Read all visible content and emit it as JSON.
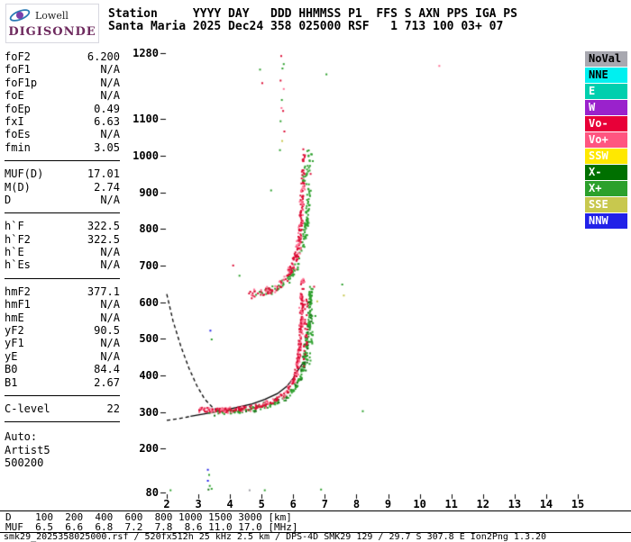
{
  "app": {
    "logo_top": "Lowell",
    "logo_bottom": "DIGISONDE"
  },
  "header": {
    "line1": "Station     YYYY DAY   DDD HHMMSS P1  FFS S AXN PPS IGA PS",
    "line2": "Santa Maria 2025 Dec24 358 025000 RSF   1 713 100 03+ 07"
  },
  "panel": {
    "groups": [
      {
        "rows": [
          [
            "foF2",
            "6.200"
          ],
          [
            "foF1",
            "N/A"
          ],
          [
            "foF1p",
            "N/A"
          ],
          [
            "foE",
            "N/A"
          ],
          [
            "foEp",
            "0.49"
          ],
          [
            "fxI",
            "6.63"
          ],
          [
            "foEs",
            "N/A"
          ],
          [
            "fmin",
            "3.05"
          ]
        ]
      },
      {
        "rows": [
          [
            "MUF(D)",
            "17.01"
          ],
          [
            "M(D)",
            "2.74"
          ],
          [
            "D",
            "N/A"
          ]
        ]
      },
      {
        "rows": [
          [
            "h`F",
            "322.5"
          ],
          [
            "h`F2",
            "322.5"
          ],
          [
            "h`E",
            "N/A"
          ],
          [
            "h`Es",
            "N/A"
          ]
        ]
      },
      {
        "rows": [
          [
            "hmF2",
            "377.1"
          ],
          [
            "hmF1",
            "N/A"
          ],
          [
            "hmE",
            "N/A"
          ],
          [
            "yF2",
            "90.5"
          ],
          [
            "yF1",
            "N/A"
          ],
          [
            "yE",
            "N/A"
          ],
          [
            "B0",
            "84.4"
          ],
          [
            "B1",
            "2.67"
          ]
        ]
      },
      {
        "rows": [
          [
            "C-level",
            "22"
          ]
        ]
      },
      {
        "gap": true,
        "rows": [
          [
            "Auto:",
            ""
          ],
          [
            "Artist5",
            ""
          ],
          [
            "500200",
            ""
          ]
        ]
      }
    ]
  },
  "muf_table": {
    "d_label": "D",
    "muf_label": "MUF",
    "distances": [
      "100",
      "200",
      "400",
      "600",
      "800",
      "1000",
      "1500",
      "3000"
    ],
    "mufs": [
      "6.5",
      "6.6",
      "6.8",
      "7.2",
      "7.8",
      "8.6",
      "11.0",
      "17.0"
    ],
    "d_unit": "[km]",
    "muf_unit": "[MHz]"
  },
  "footer": {
    "status": "smk29_2025358025000.rsf / 520fx512h 25 kHz 2.5 km / DPS-4D SMK29 129 / 29.7 S 307.8 E Ion2Png 1.3.20"
  },
  "chart_data": {
    "type": "scatter",
    "xlim": [
      2,
      15
    ],
    "ylim": [
      80,
      1280
    ],
    "x_ticks": [
      2,
      3,
      4,
      5,
      6,
      7,
      8,
      9,
      10,
      11,
      12,
      13,
      14,
      15
    ],
    "y_ticks": [
      1280,
      1100,
      1000,
      900,
      800,
      700,
      600,
      500,
      400,
      300,
      200,
      80
    ],
    "grid": false,
    "legend_position": "top-right",
    "legend": [
      {
        "label": "NoVal",
        "color": "#a8a8b0",
        "text": "#000000"
      },
      {
        "label": "NNE",
        "color": "#00f0f0",
        "text": "#000000"
      },
      {
        "label": "E",
        "color": "#00cfae",
        "text": "#ffffff"
      },
      {
        "label": "W",
        "color": "#9a22cc",
        "text": "#ffffff"
      },
      {
        "label": "Vo-",
        "color": "#e80038",
        "text": "#ffffff"
      },
      {
        "label": "Vo+",
        "color": "#ff5580",
        "text": "#ffffff"
      },
      {
        "label": "SSW",
        "color": "#ffe800",
        "text": "#ffffff"
      },
      {
        "label": "X-",
        "color": "#007000",
        "text": "#ffffff"
      },
      {
        "label": "X+",
        "color": "#2ca02c",
        "text": "#ffffff"
      },
      {
        "label": "SSE",
        "color": "#c8c84e",
        "text": "#ffffff"
      },
      {
        "label": "NNW",
        "color": "#2222e8",
        "text": "#ffffff"
      }
    ],
    "series": [
      {
        "name": "x-trace-1st-hop",
        "color": "#2ca02c",
        "count": 210,
        "jf": 0.05,
        "jh": 6,
        "path": [
          [
            3.35,
            302
          ],
          [
            3.7,
            302
          ],
          [
            4.1,
            304
          ],
          [
            4.5,
            308
          ],
          [
            4.9,
            314
          ],
          [
            5.25,
            322
          ],
          [
            5.55,
            333
          ],
          [
            5.8,
            347
          ],
          [
            6.0,
            365
          ],
          [
            6.15,
            386
          ],
          [
            6.27,
            412
          ],
          [
            6.35,
            448
          ],
          [
            6.42,
            495
          ],
          [
            6.47,
            545
          ],
          [
            6.5,
            595
          ],
          [
            6.52,
            635
          ]
        ]
      },
      {
        "name": "x-trace-1st-hop-dark",
        "color": "#157015",
        "count": 45,
        "jf": 0.09,
        "jh": 10,
        "path": [
          [
            3.35,
            302
          ],
          [
            3.7,
            302
          ],
          [
            4.1,
            304
          ],
          [
            4.5,
            308
          ],
          [
            4.9,
            314
          ],
          [
            5.25,
            322
          ],
          [
            5.55,
            333
          ],
          [
            5.8,
            347
          ],
          [
            6.0,
            365
          ],
          [
            6.15,
            386
          ],
          [
            6.27,
            412
          ],
          [
            6.35,
            448
          ],
          [
            6.42,
            495
          ],
          [
            6.47,
            545
          ],
          [
            6.5,
            595
          ],
          [
            6.52,
            635
          ]
        ]
      },
      {
        "name": "o-trace-1st-hop",
        "color": "#dc0a32",
        "count": 260,
        "jf": 0.05,
        "jh": 6,
        "path": [
          [
            2.95,
            312
          ],
          [
            3.2,
            308
          ],
          [
            3.5,
            306
          ],
          [
            3.9,
            307
          ],
          [
            4.3,
            310
          ],
          [
            4.7,
            315
          ],
          [
            5.0,
            321
          ],
          [
            5.3,
            330
          ],
          [
            5.55,
            341
          ],
          [
            5.75,
            355
          ],
          [
            5.9,
            372
          ],
          [
            6.0,
            392
          ],
          [
            6.08,
            416
          ],
          [
            6.14,
            448
          ],
          [
            6.18,
            485
          ],
          [
            6.21,
            525
          ],
          [
            6.23,
            565
          ],
          [
            6.25,
            605
          ],
          [
            6.26,
            645
          ],
          [
            6.27,
            662
          ]
        ]
      },
      {
        "name": "o-trace-1st-hop-pink",
        "color": "#ff6f92",
        "count": 70,
        "jf": 0.08,
        "jh": 9,
        "path": [
          [
            2.95,
            312
          ],
          [
            3.2,
            308
          ],
          [
            3.5,
            306
          ],
          [
            3.9,
            307
          ],
          [
            4.3,
            310
          ],
          [
            4.7,
            315
          ],
          [
            5.0,
            321
          ],
          [
            5.3,
            330
          ],
          [
            5.55,
            341
          ],
          [
            5.75,
            355
          ],
          [
            5.9,
            372
          ],
          [
            6.0,
            392
          ],
          [
            6.08,
            416
          ],
          [
            6.14,
            448
          ],
          [
            6.18,
            485
          ],
          [
            6.21,
            525
          ],
          [
            6.23,
            565
          ],
          [
            6.25,
            605
          ],
          [
            6.26,
            645
          ],
          [
            6.27,
            662
          ]
        ]
      },
      {
        "name": "x-trace-2nd-hop",
        "color": "#2ca02c",
        "count": 120,
        "jf": 0.06,
        "jh": 11,
        "path": [
          [
            4.8,
            620
          ],
          [
            5.15,
            628
          ],
          [
            5.5,
            642
          ],
          [
            5.8,
            662
          ],
          [
            6.05,
            692
          ],
          [
            6.22,
            730
          ],
          [
            6.33,
            775
          ],
          [
            6.4,
            822
          ],
          [
            6.45,
            868
          ],
          [
            6.48,
            915
          ]
        ]
      },
      {
        "name": "o-trace-2nd-hop",
        "color": "#dc0a32",
        "count": 150,
        "jf": 0.06,
        "jh": 11,
        "path": [
          [
            4.55,
            622
          ],
          [
            4.9,
            626
          ],
          [
            5.2,
            634
          ],
          [
            5.5,
            648
          ],
          [
            5.75,
            668
          ],
          [
            5.95,
            696
          ],
          [
            6.08,
            730
          ],
          [
            6.17,
            772
          ],
          [
            6.22,
            818
          ],
          [
            6.25,
            862
          ],
          [
            6.27,
            905
          ],
          [
            6.28,
            942
          ]
        ]
      },
      {
        "name": "o-trace-2nd-hop-pink",
        "color": "#ff6f92",
        "count": 45,
        "jf": 0.09,
        "jh": 14,
        "path": [
          [
            4.55,
            622
          ],
          [
            4.9,
            626
          ],
          [
            5.2,
            634
          ],
          [
            5.5,
            648
          ],
          [
            5.75,
            668
          ],
          [
            5.95,
            696
          ],
          [
            6.08,
            730
          ],
          [
            6.17,
            772
          ],
          [
            6.22,
            818
          ],
          [
            6.25,
            862
          ],
          [
            6.27,
            905
          ],
          [
            6.28,
            942
          ]
        ]
      },
      {
        "name": "spread-column-green",
        "color": "#2ca02c",
        "count": 40,
        "jf": 0.07,
        "jh": 16,
        "path": [
          [
            6.45,
            425
          ],
          [
            6.5,
            475
          ],
          [
            6.53,
            535
          ],
          [
            6.55,
            595
          ],
          [
            6.56,
            645
          ]
        ]
      },
      {
        "name": "spread-column-red",
        "color": "#dc0a32",
        "count": 28,
        "jf": 0.05,
        "jh": 16,
        "path": [
          [
            6.33,
            435
          ],
          [
            6.36,
            495
          ],
          [
            6.38,
            555
          ],
          [
            6.39,
            612
          ]
        ]
      },
      {
        "name": "2nd-hop-top-scatter-green",
        "color": "#2ca02c",
        "count": 26,
        "jf": 0.08,
        "jh": 18,
        "path": [
          [
            6.33,
            928
          ],
          [
            6.4,
            962
          ],
          [
            6.45,
            995
          ],
          [
            6.5,
            1015
          ]
        ]
      },
      {
        "name": "2nd-hop-top-scatter-red",
        "color": "#dc0a32",
        "count": 18,
        "jf": 0.05,
        "jh": 16,
        "path": [
          [
            6.28,
            940
          ],
          [
            6.3,
            980
          ],
          [
            6.32,
            1012
          ]
        ]
      }
    ],
    "noise_points": [
      [
        5.62,
        1272,
        "#dc0a32"
      ],
      [
        5.66,
        1238,
        "#2ca02c"
      ],
      [
        5.6,
        1205,
        "#dc0a32"
      ],
      [
        5.7,
        1182,
        "#ff6f92"
      ],
      [
        5.64,
        1152,
        "#2ca02c"
      ],
      [
        5.68,
        1122,
        "#dc0a32"
      ],
      [
        5.6,
        1094,
        "#2ca02c"
      ],
      [
        5.72,
        1066,
        "#dc0a32"
      ],
      [
        5.65,
        1040,
        "#c8c84e"
      ],
      [
        5.58,
        1015,
        "#2ca02c"
      ],
      [
        5.7,
        1250,
        "#2ca02c"
      ],
      [
        5.63,
        1130,
        "#ff6f92"
      ],
      [
        4.95,
        1235,
        "#2ca02c"
      ],
      [
        5.02,
        1198,
        "#dc0a32"
      ],
      [
        7.05,
        1222,
        "#2ca02c"
      ],
      [
        10.62,
        1245,
        "#ff6f92"
      ],
      [
        6.62,
        985,
        "#2ca02c"
      ],
      [
        6.55,
        950,
        "#dc0a32"
      ],
      [
        5.3,
        905,
        "#2ca02c"
      ],
      [
        4.1,
        700,
        "#dc0a32"
      ],
      [
        4.3,
        672,
        "#2ca02c"
      ],
      [
        3.38,
        522,
        "#2222e8"
      ],
      [
        3.42,
        498,
        "#2ca02c"
      ],
      [
        6.7,
        562,
        "#2ca02c"
      ],
      [
        6.76,
        602,
        "#c8c84e"
      ],
      [
        6.66,
        642,
        "#dc0a32"
      ],
      [
        7.55,
        648,
        "#2ca02c"
      ],
      [
        7.6,
        618,
        "#c8c84e"
      ],
      [
        8.2,
        302,
        "#2ca02c"
      ],
      [
        3.3,
        142,
        "#2222e8"
      ],
      [
        3.34,
        128,
        "#2ca02c"
      ],
      [
        3.3,
        112,
        "#2222e8"
      ],
      [
        3.36,
        98,
        "#2ca02c"
      ],
      [
        3.32,
        88,
        "#157015"
      ],
      [
        3.42,
        90,
        "#2ca02c"
      ],
      [
        2.12,
        86,
        "#2ca02c"
      ],
      [
        6.88,
        88,
        "#2ca02c"
      ],
      [
        4.62,
        86,
        "#9a9aa2"
      ],
      [
        5.1,
        86,
        "#2ca02c"
      ]
    ],
    "curves": [
      {
        "name": "transmission-curve",
        "style": "dashed",
        "points": [
          [
            2.0,
            622
          ],
          [
            2.2,
            548
          ],
          [
            2.45,
            478
          ],
          [
            2.7,
            420
          ],
          [
            2.95,
            372
          ],
          [
            3.2,
            335
          ],
          [
            3.45,
            312
          ],
          [
            3.7,
            300
          ]
        ]
      },
      {
        "name": "profile-extrapolated",
        "style": "dashed",
        "points": [
          [
            2.0,
            277
          ],
          [
            2.4,
            282
          ],
          [
            2.75,
            288
          ]
        ]
      },
      {
        "name": "profile-fit",
        "style": "solid",
        "points": [
          [
            2.75,
            288
          ],
          [
            3.2,
            295
          ],
          [
            3.7,
            303
          ],
          [
            4.2,
            312
          ],
          [
            4.7,
            322
          ],
          [
            5.1,
            334
          ],
          [
            5.5,
            350
          ],
          [
            5.8,
            370
          ],
          [
            6.0,
            392
          ],
          [
            6.15,
            414
          ],
          [
            6.28,
            430
          ],
          [
            6.4,
            437
          ]
        ]
      }
    ]
  }
}
